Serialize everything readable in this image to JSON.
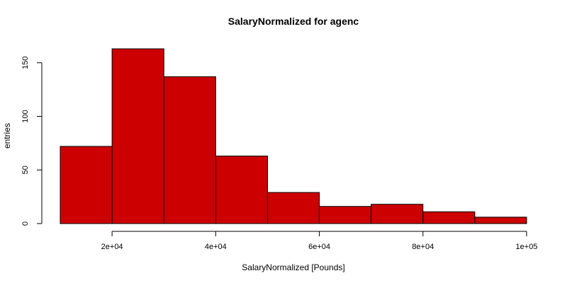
{
  "chart_data": {
    "type": "bar",
    "title": "SalaryNormalized for agenc",
    "xlabel": "SalaryNormalized [Pounds]",
    "ylabel": "entries",
    "bin_edges": [
      10000,
      20000,
      30000,
      40000,
      50000,
      60000,
      70000,
      80000,
      90000,
      100000
    ],
    "values": [
      72,
      163,
      137,
      63,
      29,
      16,
      18,
      11,
      6
    ],
    "xlim": [
      10000,
      100000
    ],
    "ylim": [
      0,
      163
    ],
    "x_ticks": [
      20000,
      40000,
      60000,
      80000,
      100000
    ],
    "x_tick_labels": [
      "2e+04",
      "4e+04",
      "6e+04",
      "8e+04",
      "1e+05"
    ],
    "y_ticks": [
      0,
      50,
      100,
      150
    ],
    "y_tick_labels": [
      "0",
      "50",
      "100",
      "150"
    ],
    "bar_color": "#cc0000",
    "grid": false,
    "legend": "none"
  }
}
